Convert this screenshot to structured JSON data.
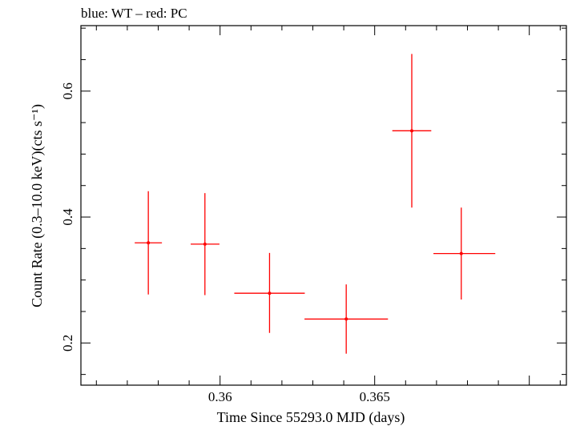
{
  "chart_data": {
    "type": "scatter",
    "title": "blue: WT – red: PC",
    "xlabel": "Time Since 55293.0 MJD (days)",
    "ylabel": "Count Rate (0.3–10.0 keV)(cts s⁻¹)",
    "xlim": [
      0.3555,
      0.3712
    ],
    "ylim": [
      0.133,
      0.704
    ],
    "x_ticks": [
      {
        "value": 0.36,
        "label": "0.36"
      },
      {
        "value": 0.365,
        "label": "0.365"
      }
    ],
    "y_ticks": [
      {
        "value": 0.2,
        "label": "0.2"
      },
      {
        "value": 0.4,
        "label": "0.4"
      },
      {
        "value": 0.6,
        "label": "0.6"
      }
    ],
    "grid": false,
    "series": [
      {
        "name": "PC",
        "color": "#ff0000",
        "points": [
          {
            "x": 0.35768,
            "xlo": 0.35724,
            "xhi": 0.35812,
            "y": 0.359,
            "ylo": 0.277,
            "yhi": 0.441
          },
          {
            "x": 0.35951,
            "xlo": 0.35905,
            "xhi": 0.35998,
            "y": 0.357,
            "ylo": 0.276,
            "yhi": 0.438
          },
          {
            "x": 0.3616,
            "xlo": 0.36046,
            "xhi": 0.36274,
            "y": 0.279,
            "ylo": 0.216,
            "yhi": 0.343
          },
          {
            "x": 0.36408,
            "xlo": 0.36273,
            "xhi": 0.36543,
            "y": 0.238,
            "ylo": 0.183,
            "yhi": 0.293
          },
          {
            "x": 0.3662,
            "xlo": 0.36557,
            "xhi": 0.36683,
            "y": 0.537,
            "ylo": 0.415,
            "yhi": 0.659
          },
          {
            "x": 0.3678,
            "xlo": 0.3669,
            "xhi": 0.3689,
            "y": 0.342,
            "ylo": 0.269,
            "yhi": 0.415
          }
        ]
      }
    ]
  }
}
